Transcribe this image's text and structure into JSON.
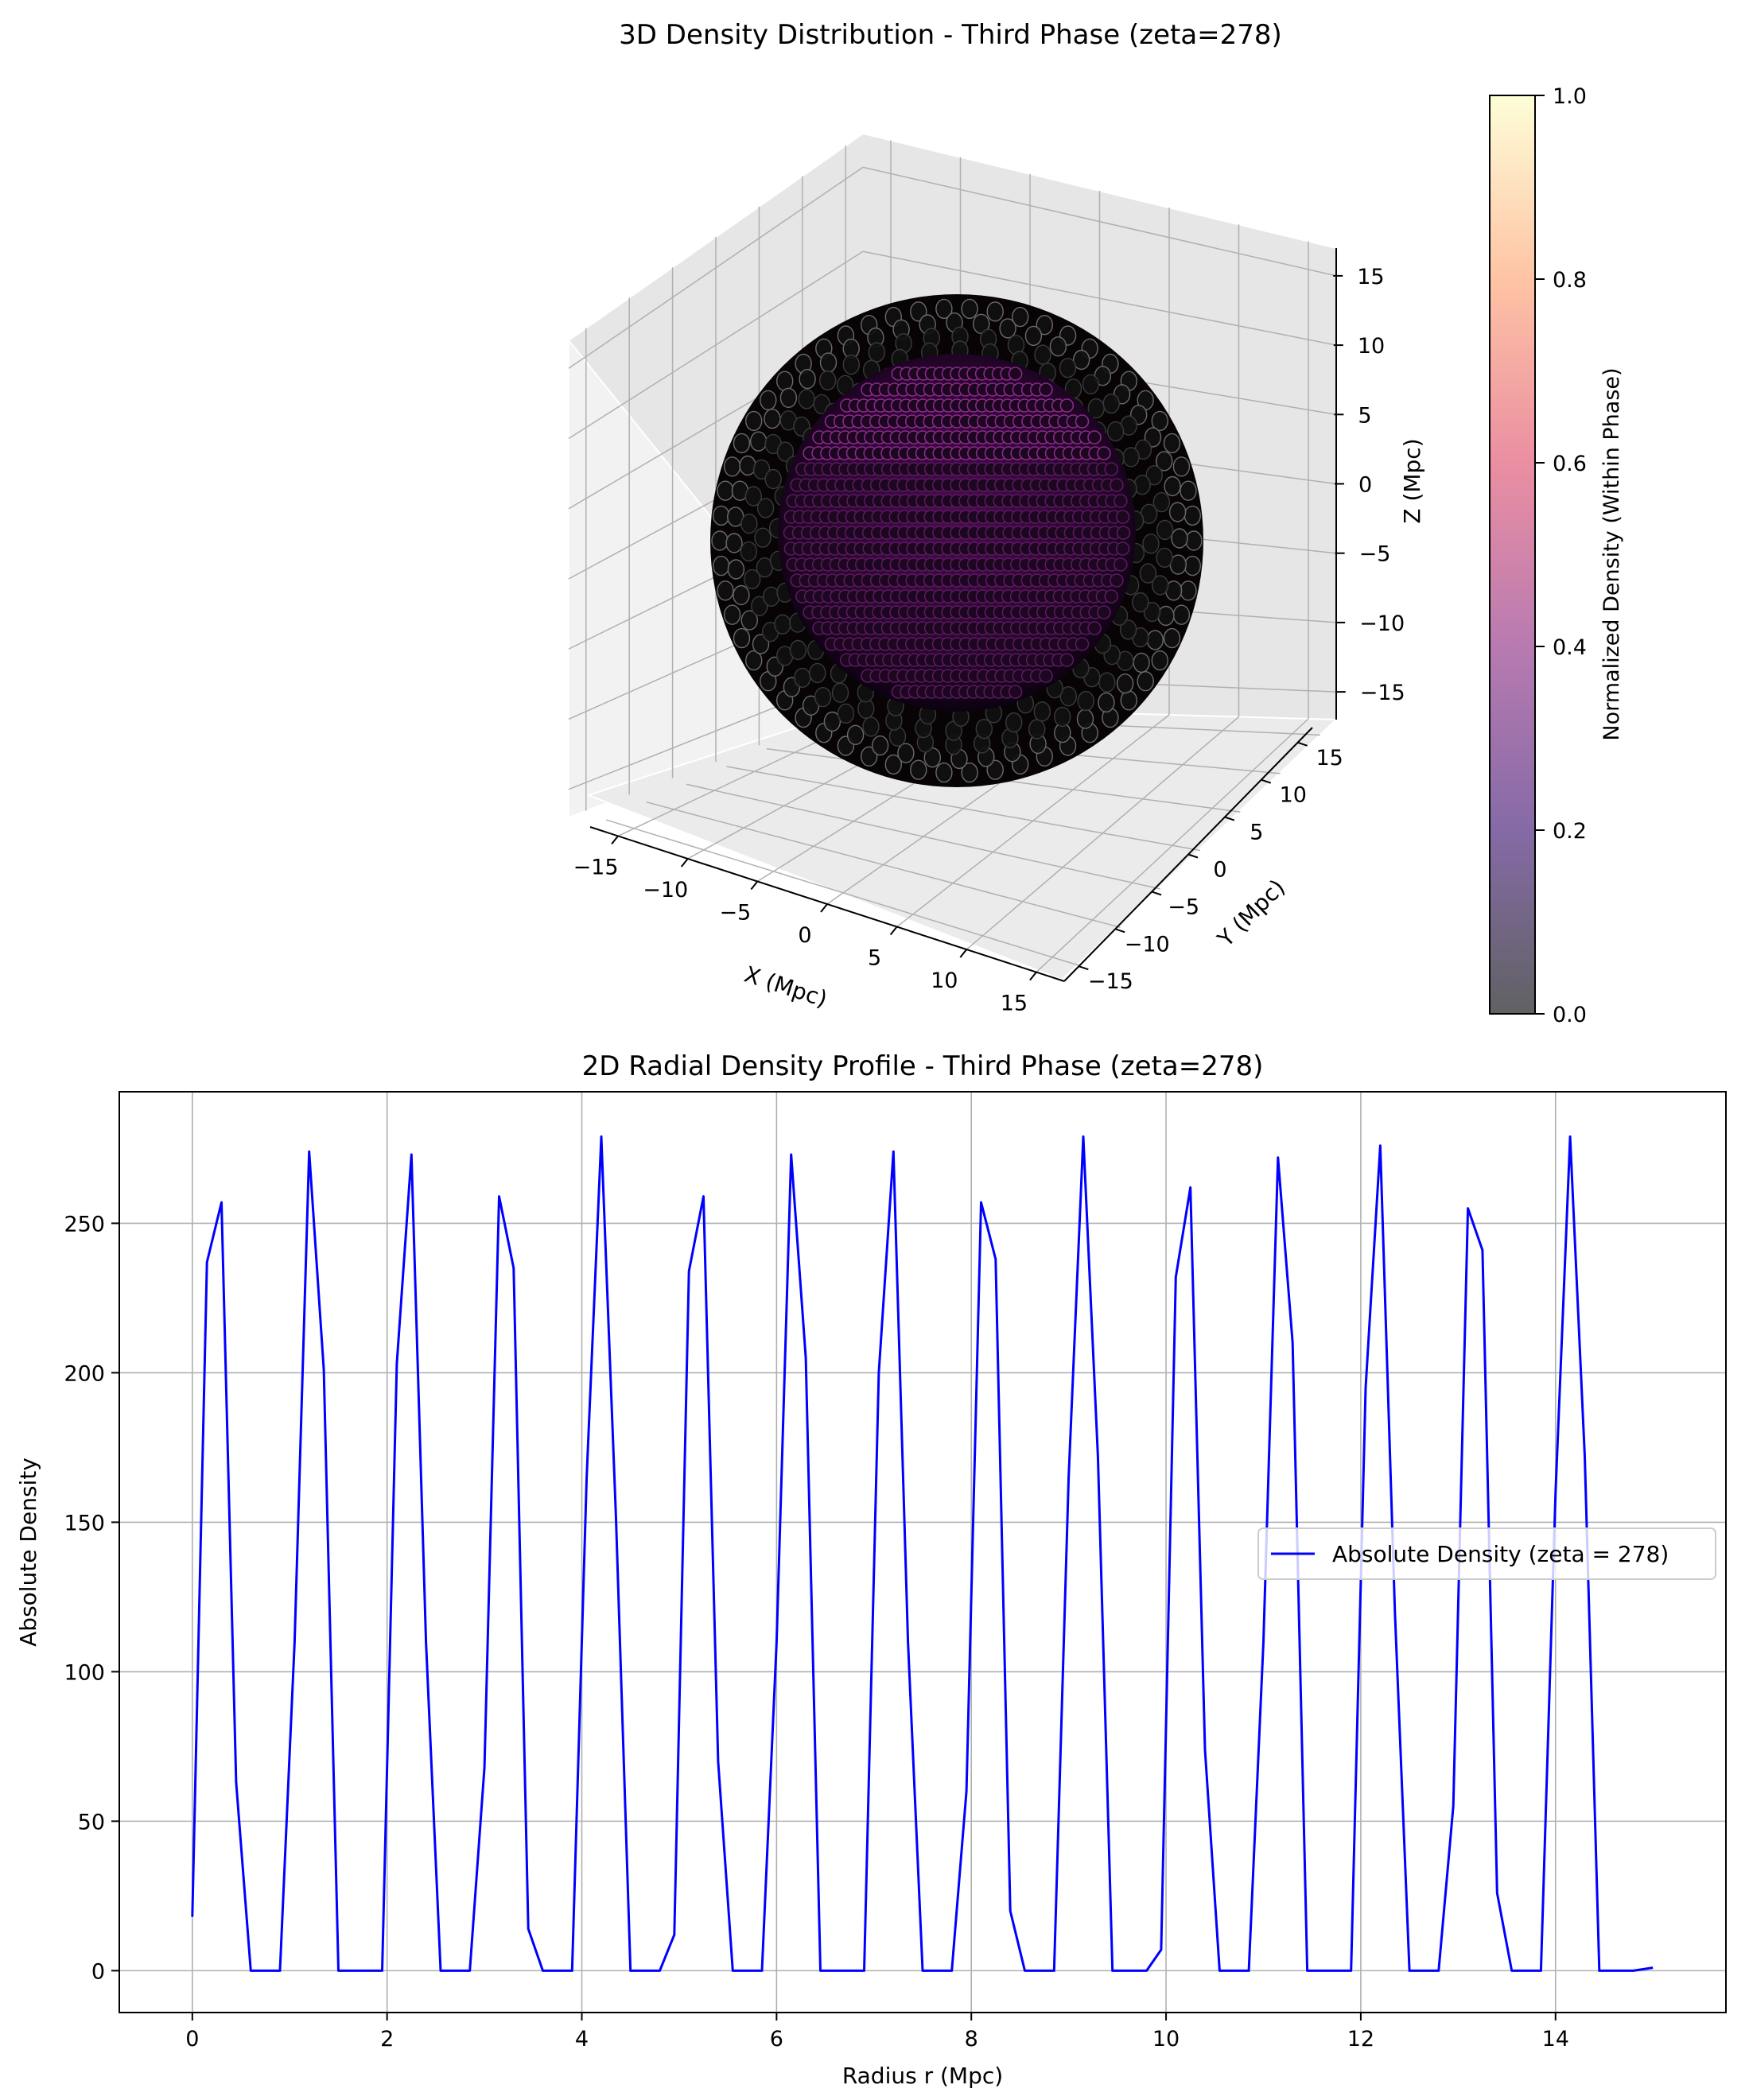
{
  "chart_data": [
    {
      "type": "scatter3d",
      "title": "3D Density Distribution - Third Phase (zeta=278)",
      "xlabel": "X (Mpc)",
      "ylabel": "Y (Mpc)",
      "zlabel": "Z (Mpc)",
      "xlim": [
        -17,
        17
      ],
      "ylim": [
        -17,
        17
      ],
      "zlim": [
        -17,
        17
      ],
      "xticks": [
        -15,
        -10,
        -5,
        0,
        5,
        10,
        15
      ],
      "yticks": [
        -15,
        -10,
        -5,
        0,
        5,
        10,
        15
      ],
      "zticks": [
        -15,
        -10,
        -5,
        0,
        5,
        10,
        15
      ],
      "xtick_labels": [
        "−15",
        "−10",
        "−5",
        "0",
        "5",
        "10",
        "15"
      ],
      "ytick_labels": [
        "−15",
        "−10",
        "−5",
        "0",
        "5",
        "10",
        "15"
      ],
      "ztick_labels": [
        "−15",
        "−10",
        "−5",
        "0",
        "5",
        "10",
        "15"
      ],
      "outer_shell_radius": 15,
      "inner_shell_radius": 11,
      "colormap": "magma",
      "colorbar": {
        "label": "Normalized Density (Within Phase)",
        "range": [
          0.0,
          1.0
        ],
        "ticks": [
          0.0,
          0.2,
          0.4,
          0.6,
          0.8,
          1.0
        ],
        "tick_labels": [
          "0.0",
          "0.2",
          "0.4",
          "0.6",
          "0.8",
          "1.0"
        ],
        "stops": [
          "#000004",
          "#3b0f70",
          "#8c2981",
          "#de4968",
          "#fe9f6d",
          "#fcfdbf"
        ]
      },
      "grid": true
    },
    {
      "type": "line",
      "title": "2D Radial Density Profile - Third Phase (zeta=278)",
      "xlabel": "Radius r (Mpc)",
      "ylabel": "Absolute Density",
      "xlim": [
        -0.75,
        15.75
      ],
      "ylim": [
        -14,
        294
      ],
      "xticks": [
        0,
        2,
        4,
        6,
        8,
        10,
        12,
        14
      ],
      "xtick_labels": [
        "0",
        "2",
        "4",
        "6",
        "8",
        "10",
        "12",
        "14"
      ],
      "yticks": [
        0,
        50,
        100,
        150,
        200,
        250
      ],
      "ytick_labels": [
        "0",
        "50",
        "100",
        "150",
        "200",
        "250"
      ],
      "grid": true,
      "legend_position": "center-right",
      "series": [
        {
          "name": "Absolute Density (zeta = 278)",
          "color": "#0000ff",
          "points": [
            [
              0.0,
              18
            ],
            [
              0.15,
              237
            ],
            [
              0.3,
              257
            ],
            [
              0.45,
              63
            ],
            [
              0.6,
              0
            ],
            [
              0.9,
              0
            ],
            [
              1.05,
              110
            ],
            [
              1.2,
              274
            ],
            [
              1.35,
              201
            ],
            [
              1.5,
              0
            ],
            [
              1.95,
              0
            ],
            [
              2.1,
              203
            ],
            [
              2.25,
              273
            ],
            [
              2.4,
              110
            ],
            [
              2.55,
              0
            ],
            [
              2.85,
              0
            ],
            [
              3.0,
              68
            ],
            [
              3.15,
              259
            ],
            [
              3.3,
              235
            ],
            [
              3.45,
              14
            ],
            [
              3.6,
              0
            ],
            [
              3.9,
              0
            ],
            [
              4.05,
              165
            ],
            [
              4.2,
              279
            ],
            [
              4.35,
              152
            ],
            [
              4.5,
              0
            ],
            [
              4.8,
              0
            ],
            [
              4.95,
              12
            ],
            [
              5.1,
              234
            ],
            [
              5.25,
              259
            ],
            [
              5.4,
              70
            ],
            [
              5.55,
              0
            ],
            [
              5.85,
              0
            ],
            [
              6.0,
              110
            ],
            [
              6.15,
              273
            ],
            [
              6.3,
              205
            ],
            [
              6.45,
              0
            ],
            [
              6.9,
              0
            ],
            [
              7.05,
              200
            ],
            [
              7.2,
              274
            ],
            [
              7.35,
              110
            ],
            [
              7.5,
              0
            ],
            [
              7.8,
              0
            ],
            [
              7.95,
              60
            ],
            [
              8.1,
              257
            ],
            [
              8.25,
              238
            ],
            [
              8.4,
              20
            ],
            [
              8.55,
              0
            ],
            [
              8.85,
              0
            ],
            [
              9.0,
              165
            ],
            [
              9.15,
              279
            ],
            [
              9.3,
              172
            ],
            [
              9.45,
              0
            ],
            [
              9.8,
              0
            ],
            [
              9.95,
              7
            ],
            [
              10.1,
              232
            ],
            [
              10.25,
              262
            ],
            [
              10.4,
              74
            ],
            [
              10.55,
              0
            ],
            [
              10.85,
              0
            ],
            [
              11.0,
              110
            ],
            [
              11.15,
              272
            ],
            [
              11.3,
              210
            ],
            [
              11.45,
              0
            ],
            [
              11.9,
              0
            ],
            [
              12.05,
              195
            ],
            [
              12.2,
              276
            ],
            [
              12.35,
              120
            ],
            [
              12.5,
              0
            ],
            [
              12.8,
              0
            ],
            [
              12.95,
              55
            ],
            [
              13.1,
              255
            ],
            [
              13.25,
              241
            ],
            [
              13.4,
              26
            ],
            [
              13.55,
              0
            ],
            [
              13.85,
              0
            ],
            [
              14.0,
              160
            ],
            [
              14.15,
              279
            ],
            [
              14.3,
              172
            ],
            [
              14.45,
              0
            ],
            [
              14.8,
              0
            ],
            [
              15.0,
              1
            ]
          ]
        }
      ]
    }
  ]
}
